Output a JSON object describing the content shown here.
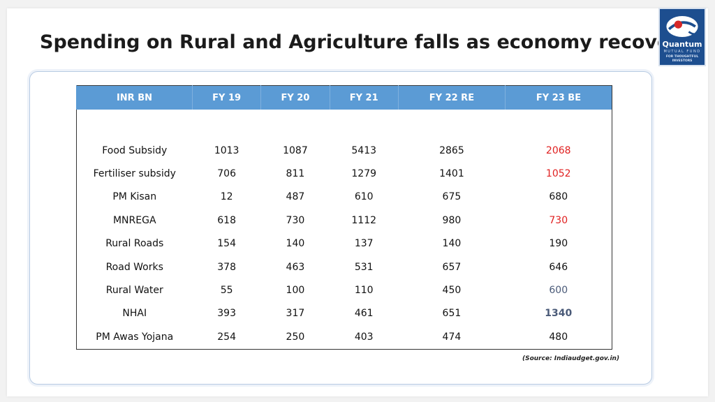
{
  "title": "Spending on Rural and Agriculture falls as economy recovers",
  "logo": {
    "name": "Quantum",
    "subtitle": "MUTUAL FUND",
    "tagline_line1": "FOR THOUGHTFUL",
    "tagline_line2": "INVESTORS"
  },
  "table": {
    "headers": [
      "INR BN",
      "FY 19",
      "FY 20",
      "FY 21",
      "FY 22 RE",
      "FY 23 BE"
    ],
    "rows": [
      {
        "label": "Food Subsidy",
        "values": [
          "1013",
          "1087",
          "5413",
          "2865",
          "2068"
        ],
        "last_color": "#e02020",
        "last_bold": false
      },
      {
        "label": "Fertiliser subsidy",
        "values": [
          "706",
          "811",
          "1279",
          "1401",
          "1052"
        ],
        "last_color": "#e02020",
        "last_bold": false
      },
      {
        "label": "PM Kisan",
        "values": [
          "12",
          "487",
          "610",
          "675",
          "680"
        ],
        "last_color": "#111111",
        "last_bold": false
      },
      {
        "label": "MNREGA",
        "values": [
          "618",
          "730",
          "1112",
          "980",
          "730"
        ],
        "last_color": "#e02020",
        "last_bold": false
      },
      {
        "label": "Rural Roads",
        "values": [
          "154",
          "140",
          "137",
          "140",
          "190"
        ],
        "last_color": "#111111",
        "last_bold": false
      },
      {
        "label": "Road Works",
        "values": [
          "378",
          "463",
          "531",
          "657",
          "646"
        ],
        "last_color": "#111111",
        "last_bold": false
      },
      {
        "label": "Rural Water",
        "values": [
          "55",
          "100",
          "110",
          "450",
          "600"
        ],
        "last_color": "#4a5a78",
        "last_bold": false
      },
      {
        "label": "NHAI",
        "values": [
          "393",
          "317",
          "461",
          "651",
          "1340"
        ],
        "last_color": "#4a5a78",
        "last_bold": true
      },
      {
        "label": "PM Awas Yojana",
        "values": [
          "254",
          "250",
          "403",
          "474",
          "480"
        ],
        "last_color": "#111111",
        "last_bold": false
      }
    ]
  },
  "source": "(Source: Indiaudget.gov.in)",
  "colors": {
    "header_bg": "#5b9bd5",
    "highlight_red": "#e02020",
    "highlight_slate": "#4a5a78",
    "logo_bg": "#1d4e8f"
  }
}
